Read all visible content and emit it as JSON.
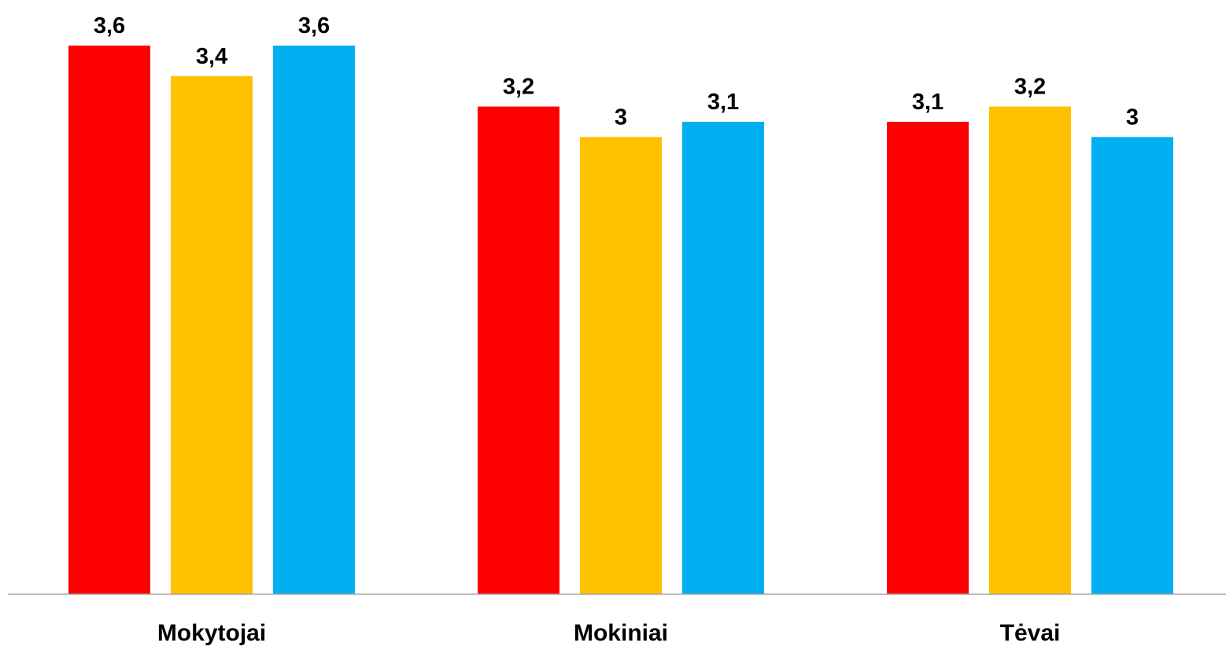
{
  "chart_data": {
    "type": "bar",
    "categories": [
      "Mokytojai",
      "Mokiniai",
      "Tėvai"
    ],
    "series": [
      {
        "values": [
          3.6,
          3.2,
          3.1
        ],
        "labels": [
          "3,6",
          "3,2",
          "3,1"
        ],
        "color": "#ff0000"
      },
      {
        "values": [
          3.4,
          3.0,
          3.2
        ],
        "labels": [
          "3,4",
          "3",
          "3,2"
        ],
        "color": "#ffc000"
      },
      {
        "values": [
          3.6,
          3.1,
          3.0
        ],
        "labels": [
          "3,6",
          "3,1",
          "3"
        ],
        "color": "#00b0f0"
      }
    ],
    "ylim": [
      0,
      3.6
    ],
    "grid": false,
    "legend": "none",
    "axis_color": "#a6a6a6"
  }
}
